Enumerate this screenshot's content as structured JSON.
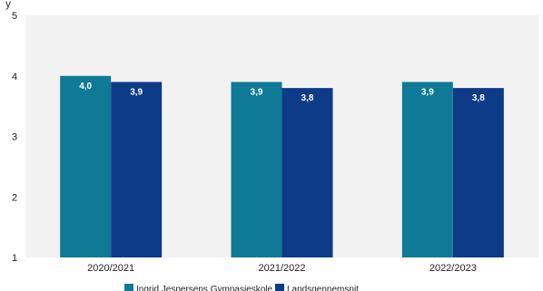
{
  "top_text_partial": "y",
  "chart_data": {
    "type": "bar",
    "categories": [
      "2020/2021",
      "2021/2022",
      "2022/2023"
    ],
    "series": [
      {
        "name": "Ingrid Jespersens Gymnasieskole",
        "values": [
          4.0,
          3.9,
          3.9
        ],
        "labels": [
          "4,0",
          "3,9",
          "3,9"
        ],
        "color": "#0e7a96"
      },
      {
        "name": "Landsgennemsnit",
        "values": [
          3.9,
          3.8,
          3.8
        ],
        "labels": [
          "3,9",
          "3,8",
          "3,8"
        ],
        "color": "#0d3b87"
      }
    ],
    "yticks": [
      "1",
      "2",
      "3",
      "4",
      "5"
    ],
    "ylim": [
      1,
      5
    ],
    "xlabel": "",
    "ylabel": "",
    "grid": false,
    "plot_background": "#f2f2f2",
    "legend_position": "bottom"
  }
}
